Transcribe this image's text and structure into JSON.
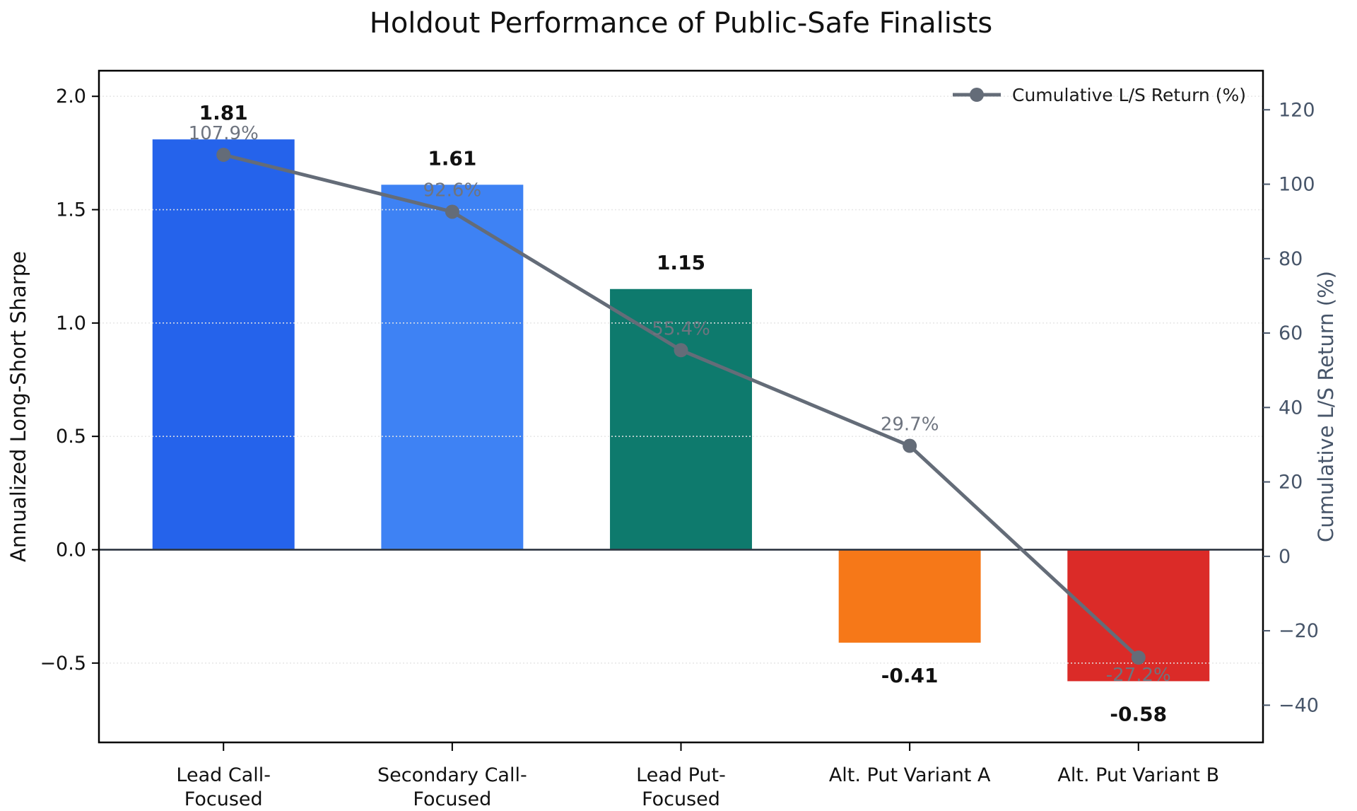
{
  "chart_data": {
    "type": "bar",
    "subtype": "bar+line-combo",
    "title": "Holdout Performance of Public-Safe Finalists",
    "categories": [
      "Lead Call-Focused",
      "Secondary Call-Focused",
      "Lead Put-Focused",
      "Alt. Put Variant A",
      "Alt. Put Variant B"
    ],
    "x_tick_lines": [
      [
        "Lead Call-",
        "Focused"
      ],
      [
        "Secondary Call-",
        "Focused"
      ],
      [
        "Lead Put-",
        "Focused"
      ],
      [
        "Alt. Put Variant A"
      ],
      [
        "Alt. Put Variant B"
      ]
    ],
    "bar_series": {
      "name": "Annualized Long-Short Sharpe",
      "values": [
        1.81,
        1.61,
        1.15,
        -0.41,
        -0.58
      ],
      "value_labels": [
        "1.81",
        "1.61",
        "1.15",
        "-0.41",
        "-0.58"
      ],
      "colors": [
        "#2563eb",
        "#3e82f4",
        "#0e7a6d",
        "#f67818",
        "#db2b28"
      ],
      "value_label_color": "#111111"
    },
    "line_series": {
      "name": "Cumulative L/S Return (%)",
      "values": [
        107.9,
        92.6,
        55.4,
        29.7,
        -27.2
      ],
      "point_labels": [
        "107.9%",
        "92.6%",
        "55.4%",
        "29.7%",
        "-27.2%"
      ],
      "color": "#646c78",
      "point_label_color": "#6e747f"
    },
    "left_axis": {
      "label": "Annualized Long-Short Sharpe",
      "ticks": [
        2.0,
        1.5,
        1.0,
        0.5,
        0.0,
        -0.5
      ],
      "tick_labels": [
        "2.0",
        "1.5",
        "1.0",
        "0.5",
        "0.0",
        "−0.5"
      ],
      "range": [
        -0.85,
        2.113
      ],
      "color": "#111111"
    },
    "right_axis": {
      "label": "Cumulative L/S Return (%)",
      "ticks": [
        120,
        100,
        80,
        60,
        40,
        20,
        0,
        -20,
        -40
      ],
      "tick_labels": [
        "120",
        "100",
        "80",
        "60",
        "40",
        "20",
        "0",
        "−20",
        "−40"
      ],
      "range": [
        -50,
        130.5
      ],
      "color": "#475569"
    },
    "legend": {
      "position": "upper right",
      "entries": [
        {
          "label": "Cumulative L/S Return (%)",
          "marker": "line-circle",
          "color": "#646c78",
          "text_color": "#1a1a1a"
        }
      ]
    },
    "grid": {
      "show": true,
      "axis": "left-y",
      "color": "#e6e6e6",
      "style": "dotted"
    },
    "zero_line_color": "#2e3642",
    "spine_color": "#000000",
    "background": "#ffffff"
  }
}
